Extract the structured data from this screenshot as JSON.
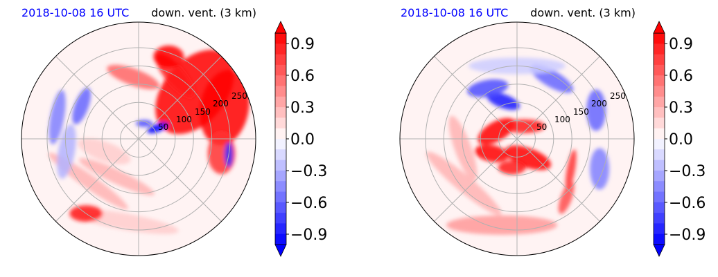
{
  "chart_data": [
    {
      "type": "heatmap",
      "title_left": "2018-10-08 16 UTC",
      "title_right": "down. vent. (3 km)",
      "projection": "polar",
      "radial_ticks": [
        "50",
        "100",
        "150",
        "200",
        "250"
      ],
      "radial_values": [
        50,
        100,
        150,
        200,
        250
      ],
      "colorbar": {
        "ticks": [
          "0.9",
          "0.6",
          "0.3",
          "0.0",
          "−0.3",
          "−0.6",
          "−0.9"
        ],
        "tick_values": [
          0.9,
          0.6,
          0.3,
          0.0,
          -0.3,
          -0.6,
          -0.9
        ],
        "range": [
          -1.0,
          1.0
        ],
        "extend": "both",
        "colormap": "bwr"
      },
      "features": [
        {
          "r": 200,
          "theta": 40,
          "v": 1.0,
          "rx": 45,
          "ry": 70,
          "rot": 40
        },
        {
          "r": 250,
          "theta": 20,
          "v": 1.0,
          "rx": 35,
          "ry": 55,
          "rot": 10
        },
        {
          "r": 200,
          "theta": 60,
          "v": 0.9,
          "rx": 40,
          "ry": 14,
          "rot": 50
        },
        {
          "r": 240,
          "theta": 70,
          "v": 1.0,
          "rx": 22,
          "ry": 16,
          "rot": 0
        },
        {
          "r": 170,
          "theta": 95,
          "v": 0.6,
          "rx": 40,
          "ry": 12,
          "rot": 20
        },
        {
          "r": 230,
          "theta": -10,
          "v": 0.8,
          "rx": 20,
          "ry": 30,
          "rot": 0
        },
        {
          "r": 60,
          "theta": 30,
          "v": -1.0,
          "rx": 16,
          "ry": 6,
          "rot": -20
        },
        {
          "r": 45,
          "theta": 70,
          "v": -0.7,
          "rx": 12,
          "ry": 5,
          "rot": 0
        },
        {
          "r": 180,
          "theta": 150,
          "v": -0.6,
          "rx": 10,
          "ry": 28,
          "rot": 20
        },
        {
          "r": 230,
          "theta": 165,
          "v": -0.5,
          "rx": 10,
          "ry": 40,
          "rot": 10
        },
        {
          "r": 250,
          "theta": -10,
          "v": -0.8,
          "rx": 6,
          "ry": 18,
          "rot": 0
        },
        {
          "r": 120,
          "theta": -120,
          "v": 0.3,
          "rx": 60,
          "ry": 10,
          "rot": 25
        },
        {
          "r": 180,
          "theta": -140,
          "v": 0.3,
          "rx": 70,
          "ry": 10,
          "rot": 35
        },
        {
          "r": 230,
          "theta": -100,
          "v": 0.2,
          "rx": 80,
          "ry": 12,
          "rot": 10
        },
        {
          "r": 250,
          "theta": -125,
          "v": 0.9,
          "rx": 24,
          "ry": 12,
          "rot": 0
        },
        {
          "r": 200,
          "theta": 190,
          "v": -0.3,
          "rx": 12,
          "ry": 40,
          "rot": 10
        },
        {
          "r": 100,
          "theta": 200,
          "v": 0.2,
          "rx": 40,
          "ry": 14,
          "rot": 20
        }
      ]
    },
    {
      "type": "heatmap",
      "title_left": "2018-10-08 16 UTC",
      "title_right": "down. vent. (3 km)",
      "projection": "polar",
      "radial_ticks": [
        "50",
        "100",
        "150",
        "200",
        "250"
      ],
      "radial_values": [
        50,
        100,
        150,
        200,
        250
      ],
      "colorbar": {
        "ticks": [
          "0.9",
          "0.6",
          "0.3",
          "0.0",
          "−0.3",
          "−0.6",
          "−0.9"
        ],
        "tick_values": [
          0.9,
          0.6,
          0.3,
          0.0,
          -0.3,
          -0.6,
          -0.9
        ],
        "range": [
          -1.0,
          1.0
        ],
        "extend": "both",
        "colormap": "bwr"
      },
      "features": [
        {
          "r": 60,
          "theta": 160,
          "v": 1.0,
          "rx": 30,
          "ry": 14,
          "rot": -30
        },
        {
          "r": 80,
          "theta": 210,
          "v": 1.0,
          "rx": 25,
          "ry": 12,
          "rot": 10
        },
        {
          "r": 60,
          "theta": -60,
          "v": 1.0,
          "rx": 35,
          "ry": 14,
          "rot": 20
        },
        {
          "r": 40,
          "theta": 60,
          "v": 0.9,
          "rx": 30,
          "ry": 10,
          "rot": 0
        },
        {
          "r": 80,
          "theta": -100,
          "v": 0.9,
          "rx": 20,
          "ry": 10,
          "rot": 0
        },
        {
          "r": 110,
          "theta": 110,
          "v": -0.9,
          "rx": 25,
          "ry": 10,
          "rot": 20
        },
        {
          "r": 160,
          "theta": 120,
          "v": -0.7,
          "rx": 30,
          "ry": 12,
          "rot": -10
        },
        {
          "r": 190,
          "theta": 60,
          "v": -0.6,
          "rx": 35,
          "ry": 12,
          "rot": 30
        },
        {
          "r": 230,
          "theta": 20,
          "v": -0.6,
          "rx": 14,
          "ry": 30,
          "rot": 0
        },
        {
          "r": 240,
          "theta": -20,
          "v": -0.5,
          "rx": 14,
          "ry": 30,
          "rot": 0
        },
        {
          "r": 170,
          "theta": -30,
          "v": 0.8,
          "rx": 6,
          "ry": 30,
          "rot": 10
        },
        {
          "r": 210,
          "theta": -50,
          "v": 0.7,
          "rx": 8,
          "ry": 25,
          "rot": 20
        },
        {
          "r": 240,
          "theta": -100,
          "v": 0.4,
          "rx": 80,
          "ry": 14,
          "rot": 0
        },
        {
          "r": 190,
          "theta": -140,
          "v": 0.3,
          "rx": 70,
          "ry": 12,
          "rot": 40
        },
        {
          "r": 150,
          "theta": 190,
          "v": 0.3,
          "rx": 50,
          "ry": 12,
          "rot": 70
        },
        {
          "r": 200,
          "theta": 90,
          "v": -0.2,
          "rx": 70,
          "ry": 12,
          "rot": 0
        }
      ]
    }
  ]
}
